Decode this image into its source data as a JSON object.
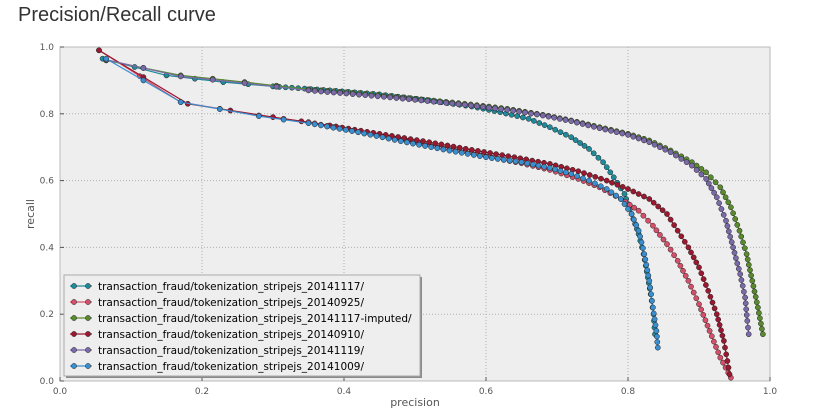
{
  "page": {
    "title": "Precision/Recall curve"
  },
  "chart_data": {
    "type": "line",
    "title": "",
    "xlabel": "precision",
    "ylabel": "recall",
    "xlim": [
      0.0,
      1.0
    ],
    "ylim": [
      0.0,
      1.0
    ],
    "xticks": [
      "0.0",
      "0.2",
      "0.4",
      "0.6",
      "0.8",
      "1.0"
    ],
    "yticks": [
      "0.0",
      "0.2",
      "0.4",
      "0.6",
      "0.8",
      "1.0"
    ],
    "grid": true,
    "legend_position": "lower-left",
    "series": [
      {
        "name": "transaction_fraud/tokenization_stripejs_20141117/",
        "color": "#1f8a9a",
        "points": [
          [
            0.06,
            0.965
          ],
          [
            0.15,
            0.915
          ],
          [
            0.23,
            0.895
          ],
          [
            0.3,
            0.882
          ],
          [
            0.38,
            0.87
          ],
          [
            0.45,
            0.858
          ],
          [
            0.52,
            0.84
          ],
          [
            0.58,
            0.822
          ],
          [
            0.62,
            0.805
          ],
          [
            0.66,
            0.785
          ],
          [
            0.69,
            0.76
          ],
          [
            0.72,
            0.73
          ],
          [
            0.745,
            0.695
          ],
          [
            0.765,
            0.655
          ],
          [
            0.78,
            0.61
          ],
          [
            0.795,
            0.56
          ],
          [
            0.805,
            0.5
          ],
          [
            0.815,
            0.44
          ],
          [
            0.822,
            0.38
          ],
          [
            0.828,
            0.31
          ],
          [
            0.832,
            0.26
          ],
          [
            0.836,
            0.2
          ],
          [
            0.838,
            0.14
          ]
        ]
      },
      {
        "name": "transaction_fraud/tokenization_stripejs_20140925/",
        "color": "#d4506a",
        "points": [
          [
            0.055,
            0.99
          ],
          [
            0.17,
            0.835
          ],
          [
            0.28,
            0.795
          ],
          [
            0.35,
            0.775
          ],
          [
            0.42,
            0.745
          ],
          [
            0.48,
            0.72
          ],
          [
            0.54,
            0.695
          ],
          [
            0.6,
            0.672
          ],
          [
            0.65,
            0.652
          ],
          [
            0.69,
            0.632
          ],
          [
            0.73,
            0.605
          ],
          [
            0.76,
            0.58
          ],
          [
            0.79,
            0.545
          ],
          [
            0.815,
            0.51
          ],
          [
            0.835,
            0.465
          ],
          [
            0.855,
            0.41
          ],
          [
            0.87,
            0.36
          ],
          [
            0.885,
            0.3
          ],
          [
            0.9,
            0.23
          ],
          [
            0.915,
            0.15
          ],
          [
            0.93,
            0.07
          ],
          [
            0.945,
            0.01
          ]
        ]
      },
      {
        "name": "transaction_fraud/tokenization_stripejs_20141117-imputed/",
        "color": "#5a8a2e",
        "points": [
          [
            0.065,
            0.96
          ],
          [
            0.17,
            0.915
          ],
          [
            0.26,
            0.895
          ],
          [
            0.35,
            0.873
          ],
          [
            0.43,
            0.86
          ],
          [
            0.5,
            0.845
          ],
          [
            0.57,
            0.83
          ],
          [
            0.63,
            0.815
          ],
          [
            0.68,
            0.797
          ],
          [
            0.72,
            0.78
          ],
          [
            0.76,
            0.76
          ],
          [
            0.8,
            0.74
          ],
          [
            0.83,
            0.72
          ],
          [
            0.86,
            0.69
          ],
          [
            0.89,
            0.655
          ],
          [
            0.91,
            0.625
          ],
          [
            0.93,
            0.58
          ],
          [
            0.945,
            0.52
          ],
          [
            0.957,
            0.45
          ],
          [
            0.967,
            0.38
          ],
          [
            0.975,
            0.3
          ],
          [
            0.983,
            0.22
          ],
          [
            0.99,
            0.14
          ]
        ]
      },
      {
        "name": "transaction_fraud/tokenization_stripejs_20140910/",
        "color": "#9a1830",
        "points": [
          [
            0.055,
            0.99
          ],
          [
            0.18,
            0.83
          ],
          [
            0.3,
            0.79
          ],
          [
            0.38,
            0.765
          ],
          [
            0.45,
            0.74
          ],
          [
            0.52,
            0.715
          ],
          [
            0.58,
            0.692
          ],
          [
            0.64,
            0.67
          ],
          [
            0.69,
            0.65
          ],
          [
            0.73,
            0.628
          ],
          [
            0.77,
            0.6
          ],
          [
            0.8,
            0.575
          ],
          [
            0.83,
            0.545
          ],
          [
            0.855,
            0.5
          ],
          [
            0.87,
            0.45
          ],
          [
            0.885,
            0.4
          ],
          [
            0.9,
            0.34
          ],
          [
            0.913,
            0.27
          ],
          [
            0.925,
            0.2
          ],
          [
            0.935,
            0.12
          ],
          [
            0.94,
            0.06
          ],
          [
            0.943,
            0.02
          ]
        ]
      },
      {
        "name": "transaction_fraud/tokenization_stripejs_20141119/",
        "color": "#7a6aa8",
        "points": [
          [
            0.065,
            0.962
          ],
          [
            0.17,
            0.912
          ],
          [
            0.26,
            0.892
          ],
          [
            0.35,
            0.87
          ],
          [
            0.43,
            0.856
          ],
          [
            0.5,
            0.842
          ],
          [
            0.57,
            0.827
          ],
          [
            0.63,
            0.812
          ],
          [
            0.68,
            0.795
          ],
          [
            0.72,
            0.778
          ],
          [
            0.76,
            0.757
          ],
          [
            0.8,
            0.737
          ],
          [
            0.83,
            0.715
          ],
          [
            0.86,
            0.685
          ],
          [
            0.89,
            0.645
          ],
          [
            0.91,
            0.605
          ],
          [
            0.925,
            0.55
          ],
          [
            0.938,
            0.48
          ],
          [
            0.948,
            0.4
          ],
          [
            0.958,
            0.32
          ],
          [
            0.965,
            0.25
          ],
          [
            0.968,
            0.18
          ],
          [
            0.97,
            0.14
          ]
        ]
      },
      {
        "name": "transaction_fraud/tokenization_stripejs_20141009/",
        "color": "#3a8fd0",
        "points": [
          [
            0.065,
            0.965
          ],
          [
            0.17,
            0.835
          ],
          [
            0.28,
            0.793
          ],
          [
            0.35,
            0.772
          ],
          [
            0.42,
            0.745
          ],
          [
            0.48,
            0.718
          ],
          [
            0.54,
            0.693
          ],
          [
            0.6,
            0.67
          ],
          [
            0.65,
            0.655
          ],
          [
            0.69,
            0.638
          ],
          [
            0.72,
            0.62
          ],
          [
            0.745,
            0.6
          ],
          [
            0.77,
            0.575
          ],
          [
            0.79,
            0.545
          ],
          [
            0.805,
            0.5
          ],
          [
            0.815,
            0.45
          ],
          [
            0.823,
            0.38
          ],
          [
            0.83,
            0.3
          ],
          [
            0.835,
            0.22
          ],
          [
            0.84,
            0.15
          ],
          [
            0.842,
            0.1
          ]
        ]
      }
    ]
  }
}
